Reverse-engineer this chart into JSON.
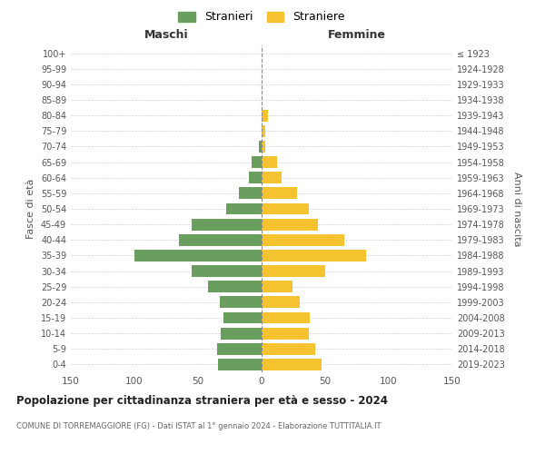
{
  "age_groups": [
    "0-4",
    "5-9",
    "10-14",
    "15-19",
    "20-24",
    "25-29",
    "30-34",
    "35-39",
    "40-44",
    "45-49",
    "50-54",
    "55-59",
    "60-64",
    "65-69",
    "70-74",
    "75-79",
    "80-84",
    "85-89",
    "90-94",
    "95-99",
    "100+"
  ],
  "birth_years": [
    "2019-2023",
    "2014-2018",
    "2009-2013",
    "2004-2008",
    "1999-2003",
    "1994-1998",
    "1989-1993",
    "1984-1988",
    "1979-1983",
    "1974-1978",
    "1969-1973",
    "1964-1968",
    "1959-1963",
    "1954-1958",
    "1949-1953",
    "1944-1948",
    "1939-1943",
    "1934-1938",
    "1929-1933",
    "1924-1928",
    "≤ 1923"
  ],
  "maschi": [
    34,
    35,
    32,
    30,
    33,
    42,
    55,
    100,
    65,
    55,
    28,
    18,
    10,
    8,
    2,
    0,
    0,
    0,
    0,
    0,
    0
  ],
  "femmine": [
    47,
    42,
    37,
    38,
    30,
    24,
    50,
    82,
    65,
    44,
    37,
    28,
    16,
    12,
    3,
    3,
    5,
    0,
    0,
    0,
    0
  ],
  "color_maschi": "#6a9e5e",
  "color_femmine": "#f5c330",
  "title": "Popolazione per cittadinanza straniera per età e sesso - 2024",
  "subtitle": "COMUNE DI TORREMAGGIORE (FG) - Dati ISTAT al 1° gennaio 2024 - Elaborazione TUTTITALIA.IT",
  "xlabel_left": "Maschi",
  "xlabel_right": "Femmine",
  "ylabel_left": "Fasce di età",
  "ylabel_right": "Anni di nascita",
  "legend_maschi": "Stranieri",
  "legend_femmine": "Straniere",
  "xlim": 150,
  "background_color": "#ffffff",
  "grid_color": "#cccccc"
}
